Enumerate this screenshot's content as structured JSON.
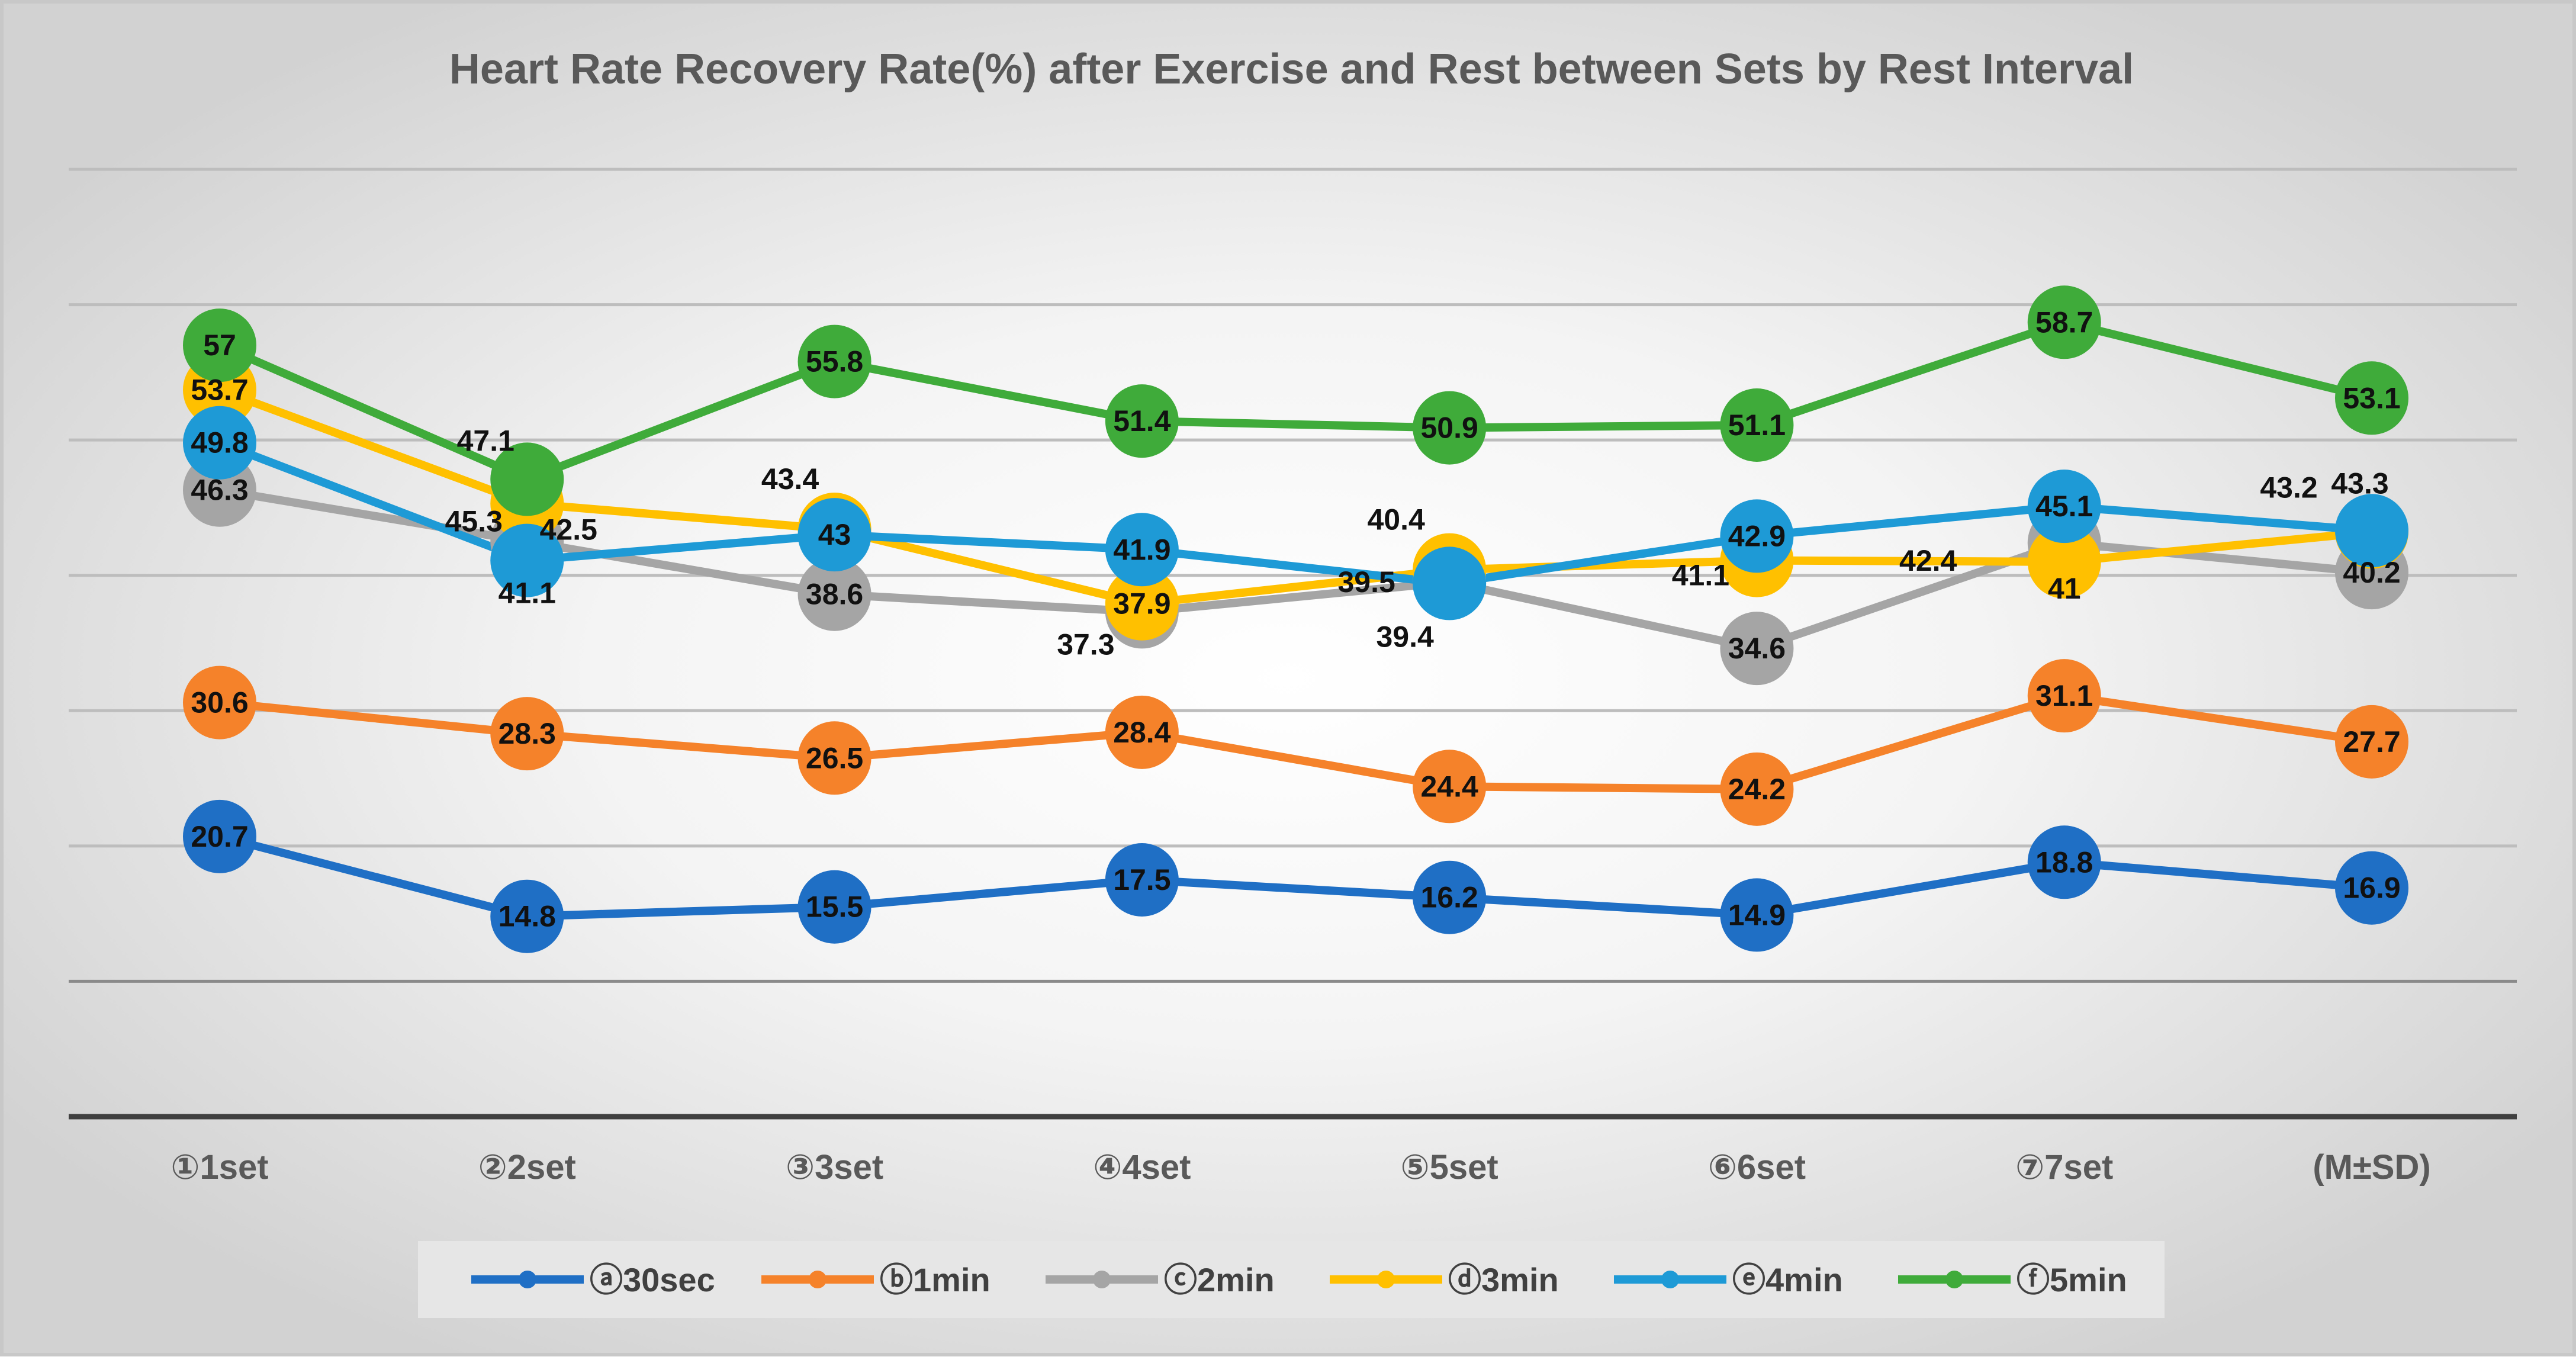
{
  "chart_data": {
    "type": "line",
    "title": "Heart Rate Recovery Rate(%) after Exercise and Rest between Sets by Rest Interval",
    "xlabel": "",
    "ylabel": "",
    "categories": [
      "①1set",
      "②2set",
      "③3set",
      "④4set",
      "⑤5set",
      "⑥6set",
      "⑦7set",
      "(M±SD)"
    ],
    "ylim": [
      0,
      70
    ],
    "grid": true,
    "legend_position": "bottom",
    "series": [
      {
        "name": "ⓐ30sec",
        "color": "#1f6fc5",
        "values": [
          20.7,
          14.8,
          15.5,
          17.5,
          16.2,
          14.9,
          18.8,
          16.9
        ]
      },
      {
        "name": "ⓑ1min",
        "color": "#f5822a",
        "values": [
          30.6,
          28.3,
          26.5,
          28.4,
          24.4,
          24.2,
          31.1,
          27.7
        ]
      },
      {
        "name": "ⓒ2min",
        "color": "#a5a5a5",
        "values": [
          46.3,
          42.5,
          38.6,
          37.3,
          39.5,
          34.6,
          42.4,
          40.2
        ]
      },
      {
        "name": "ⓓ3min",
        "color": "#ffc000",
        "values": [
          53.7,
          45.3,
          43.4,
          37.9,
          40.4,
          41.1,
          41,
          43.2
        ]
      },
      {
        "name": "ⓔ4min",
        "color": "#1e9ad6",
        "values": [
          49.8,
          41.1,
          43,
          41.9,
          39.4,
          42.9,
          45.1,
          43.3
        ]
      },
      {
        "name": "ⓕ5min",
        "color": "#3fab3a",
        "values": [
          57,
          47.1,
          55.8,
          51.4,
          50.9,
          51.1,
          58.7,
          53.1
        ]
      }
    ]
  }
}
